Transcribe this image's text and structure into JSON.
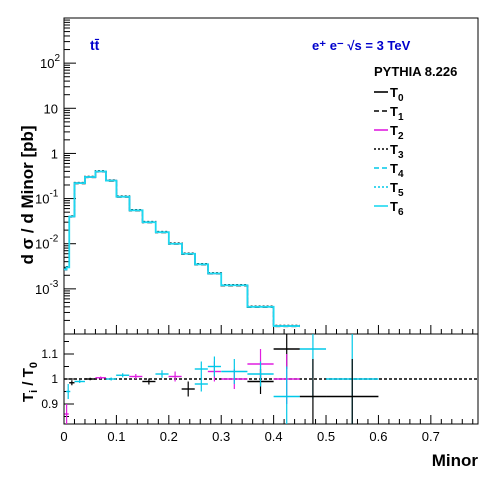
{
  "chart_data": [
    {
      "type": "line",
      "subtype": "step-histogram",
      "process_label": "tt̄",
      "collider_label": "e⁺ e⁻ √s = 3 TeV",
      "generator_label": "PYTHIA 8.226",
      "ylabel": "d σ / d Minor [pb]",
      "yscale": "log",
      "ylim": [
        0.0001,
        1000
      ],
      "xlim": [
        0,
        0.79
      ],
      "yticks": [
        {
          "label": "10",
          "exp": "-3",
          "value": 0.001
        },
        {
          "label": "10",
          "exp": "-2",
          "value": 0.01
        },
        {
          "label": "10",
          "exp": "-1",
          "value": 0.1
        },
        {
          "label": "1",
          "exp": "",
          "value": 1
        },
        {
          "label": "10",
          "exp": "",
          "value": 10
        },
        {
          "label": "10",
          "exp": "2",
          "value": 100
        }
      ],
      "bin_edges": [
        0,
        0.005,
        0.01,
        0.02,
        0.04,
        0.06,
        0.08,
        0.1,
        0.125,
        0.15,
        0.175,
        0.2,
        0.225,
        0.25,
        0.275,
        0.3,
        0.35,
        0.4,
        0.45
      ],
      "values": [
        0.0027,
        0.003,
        0.04,
        0.22,
        0.3,
        0.4,
        0.25,
        0.11,
        0.055,
        0.03,
        0.018,
        0.01,
        0.006,
        0.0035,
        0.0022,
        0.0012,
        0.0004,
        0.00015
      ],
      "series": [
        {
          "name": "T",
          "sub": "0",
          "color": "#000000",
          "dash": ""
        },
        {
          "name": "T",
          "sub": "1",
          "color": "#000000",
          "dash": "5,3"
        },
        {
          "name": "T",
          "sub": "2",
          "color": "#e01ee0",
          "dash": ""
        },
        {
          "name": "T",
          "sub": "3",
          "color": "#000000",
          "dash": "2,2"
        },
        {
          "name": "T",
          "sub": "4",
          "color": "#00c8e8",
          "dash": "5,3"
        },
        {
          "name": "T",
          "sub": "5",
          "color": "#00c8e8",
          "dash": "2,2"
        },
        {
          "name": "T",
          "sub": "6",
          "color": "#1ed8f0",
          "dash": ""
        }
      ]
    },
    {
      "type": "scatter",
      "subtype": "ratio-with-errorbars",
      "ylabel_main": "T",
      "ylabel_sub": "i",
      "ylabel_den": " / T",
      "ylabel_den_sub": "0",
      "xlabel": "Minor",
      "xlim": [
        0,
        0.79
      ],
      "ylim": [
        0.82,
        1.18
      ],
      "reference_line": 1.0,
      "yticks": [
        "0.9",
        "1",
        "1.1"
      ],
      "xticks": [
        "0",
        "0.1",
        "0.2",
        "0.3",
        "0.4",
        "0.5",
        "0.6",
        "0.7"
      ],
      "xtick_values": [
        0,
        0.1,
        0.2,
        0.3,
        0.4,
        0.5,
        0.6,
        0.7
      ],
      "points": [
        {
          "x": 0.005,
          "y": 0.86,
          "dx": 0.004,
          "dy": 0.04,
          "color": "#e01ee0"
        },
        {
          "x": 0.008,
          "y": 0.95,
          "dx": 0.004,
          "dy": 0.03,
          "color": "#00c8e8"
        },
        {
          "x": 0.015,
          "y": 0.985,
          "dx": 0.005,
          "dy": 0.01,
          "color": "#000000"
        },
        {
          "x": 0.03,
          "y": 0.99,
          "dx": 0.01,
          "dy": 0.006,
          "color": "#00c8e8"
        },
        {
          "x": 0.05,
          "y": 1.0,
          "dx": 0.01,
          "dy": 0.005,
          "color": "#000000"
        },
        {
          "x": 0.07,
          "y": 1.005,
          "dx": 0.01,
          "dy": 0.005,
          "color": "#e01ee0"
        },
        {
          "x": 0.09,
          "y": 1.0,
          "dx": 0.01,
          "dy": 0.006,
          "color": "#00c8e8"
        },
        {
          "x": 0.112,
          "y": 1.015,
          "dx": 0.0125,
          "dy": 0.008,
          "color": "#00c8e8"
        },
        {
          "x": 0.137,
          "y": 1.01,
          "dx": 0.0125,
          "dy": 0.01,
          "color": "#e01ee0"
        },
        {
          "x": 0.162,
          "y": 0.99,
          "dx": 0.0125,
          "dy": 0.012,
          "color": "#000000"
        },
        {
          "x": 0.187,
          "y": 1.02,
          "dx": 0.0125,
          "dy": 0.015,
          "color": "#00c8e8"
        },
        {
          "x": 0.212,
          "y": 1.01,
          "dx": 0.0125,
          "dy": 0.02,
          "color": "#e01ee0"
        },
        {
          "x": 0.237,
          "y": 0.96,
          "dx": 0.0125,
          "dy": 0.03,
          "color": "#000000"
        },
        {
          "x": 0.262,
          "y": 1.04,
          "dx": 0.0125,
          "dy": 0.03,
          "color": "#00c8e8"
        },
        {
          "x": 0.262,
          "y": 0.98,
          "dx": 0.0125,
          "dy": 0.03,
          "color": "#00c8e8"
        },
        {
          "x": 0.287,
          "y": 1.03,
          "dx": 0.0125,
          "dy": 0.04,
          "color": "#e01ee0"
        },
        {
          "x": 0.287,
          "y": 1.05,
          "dx": 0.0125,
          "dy": 0.04,
          "color": "#00c8e8"
        },
        {
          "x": 0.325,
          "y": 1.0,
          "dx": 0.025,
          "dy": 0.04,
          "color": "#e01ee0"
        },
        {
          "x": 0.325,
          "y": 1.03,
          "dx": 0.025,
          "dy": 0.05,
          "color": "#00c8e8"
        },
        {
          "x": 0.375,
          "y": 1.06,
          "dx": 0.025,
          "dy": 0.06,
          "color": "#e01ee0"
        },
        {
          "x": 0.375,
          "y": 0.99,
          "dx": 0.025,
          "dy": 0.05,
          "color": "#000000"
        },
        {
          "x": 0.375,
          "y": 1.02,
          "dx": 0.025,
          "dy": 0.05,
          "color": "#00c8e8"
        },
        {
          "x": 0.425,
          "y": 1.12,
          "dx": 0.025,
          "dy": 0.08,
          "color": "#000000"
        },
        {
          "x": 0.425,
          "y": 1.0,
          "dx": 0.025,
          "dy": 0.1,
          "color": "#e01ee0"
        },
        {
          "x": 0.425,
          "y": 0.93,
          "dx": 0.025,
          "dy": 0.12,
          "color": "#00c8e8"
        },
        {
          "x": 0.475,
          "y": 1.12,
          "dx": 0.025,
          "dy": 0.2,
          "color": "#00c8e8"
        },
        {
          "x": 0.475,
          "y": 0.93,
          "dx": 0.025,
          "dy": 0.15,
          "color": "#000000"
        },
        {
          "x": 0.55,
          "y": 1.0,
          "dx": 0.05,
          "dy": 0.2,
          "color": "#00c8e8"
        },
        {
          "x": 0.55,
          "y": 0.93,
          "dx": 0.05,
          "dy": 0.15,
          "color": "#000000"
        }
      ]
    }
  ]
}
